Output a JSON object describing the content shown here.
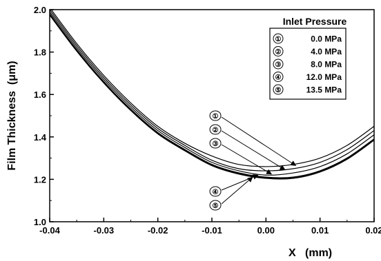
{
  "chart_data": {
    "type": "line",
    "title": "",
    "xlabel": "X   (mm)",
    "ylabel": "Film Thickness  (μm)",
    "xlim": [
      -0.04,
      0.02
    ],
    "ylim": [
      1.0,
      2.0
    ],
    "x_ticks": [
      "-0.04",
      "-0.03",
      "-0.02",
      "-0.01",
      "0.00",
      "0.01",
      "0.02"
    ],
    "y_ticks": [
      "1.0",
      "1.2",
      "1.4",
      "1.6",
      "1.8",
      "2.0"
    ],
    "grid": false,
    "legend": {
      "title": "Inlet Pressure",
      "placement": "top-right",
      "entries": [
        {
          "marker": "①",
          "label": "0.0 MPa"
        },
        {
          "marker": "②",
          "label": "4.0 MPa"
        },
        {
          "marker": "③",
          "label": "8.0 MPa"
        },
        {
          "marker": "④",
          "label": "12.0 MPa"
        },
        {
          "marker": "⑤",
          "label": "13.5 MPa"
        }
      ]
    },
    "x": [
      -0.04,
      -0.035,
      -0.03,
      -0.025,
      -0.02,
      -0.015,
      -0.01,
      -0.005,
      0.0,
      0.005,
      0.01,
      0.015,
      0.02
    ],
    "series": [
      {
        "marker": "①",
        "values": [
          2.01,
          1.84,
          1.69,
          1.56,
          1.45,
          1.37,
          1.31,
          1.27,
          1.26,
          1.27,
          1.3,
          1.36,
          1.45
        ]
      },
      {
        "marker": "②",
        "values": [
          2.0,
          1.83,
          1.68,
          1.55,
          1.44,
          1.36,
          1.29,
          1.25,
          1.24,
          1.25,
          1.28,
          1.34,
          1.43
        ]
      },
      {
        "marker": "③",
        "values": [
          1.99,
          1.82,
          1.67,
          1.54,
          1.43,
          1.35,
          1.28,
          1.24,
          1.22,
          1.23,
          1.26,
          1.32,
          1.41
        ]
      },
      {
        "marker": "④",
        "values": [
          1.98,
          1.81,
          1.66,
          1.53,
          1.42,
          1.34,
          1.27,
          1.23,
          1.21,
          1.21,
          1.24,
          1.3,
          1.39
        ]
      },
      {
        "marker": "⑤",
        "values": [
          1.975,
          1.805,
          1.655,
          1.525,
          1.415,
          1.335,
          1.265,
          1.225,
          1.205,
          1.205,
          1.235,
          1.295,
          1.385
        ]
      }
    ],
    "annotations": [
      {
        "marker": "①",
        "target_x": 0.0055,
        "target_y": 1.265
      },
      {
        "marker": "②",
        "target_x": 0.0035,
        "target_y": 1.245
      },
      {
        "marker": "③",
        "target_x": 0.001,
        "target_y": 1.225
      },
      {
        "marker": "④",
        "target_x": -0.0015,
        "target_y": 1.22
      },
      {
        "marker": "⑤",
        "target_x": -0.0025,
        "target_y": 1.21
      }
    ]
  }
}
